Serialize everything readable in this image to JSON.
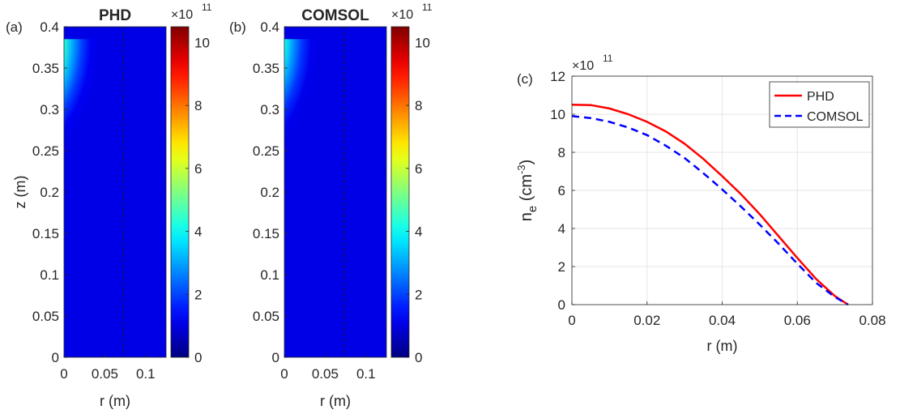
{
  "chart_data": [
    {
      "type": "heatmap",
      "panel_label": "(a)",
      "title": "PHD",
      "xlabel": "r (m)",
      "ylabel": "z (m)",
      "xlim": [
        0,
        0.125
      ],
      "ylim": [
        0,
        0.4
      ],
      "x_ticks": [
        "0",
        "0.05",
        "0.1"
      ],
      "y_ticks": [
        "0",
        "0.05",
        "0.1",
        "0.15",
        "0.2",
        "0.25",
        "0.3",
        "0.35",
        "0.4"
      ],
      "colorbar": {
        "min": 0,
        "max": 10.5,
        "ticks": [
          "0",
          "2",
          "4",
          "6",
          "8",
          "10"
        ],
        "exponent": "×10",
        "exponent_power": "11"
      },
      "peak": {
        "r": 0,
        "z": 0.3,
        "value": 10.5
      },
      "boundary_r": 0.073
    },
    {
      "type": "heatmap",
      "panel_label": "(b)",
      "title": "COMSOL",
      "xlabel": "r (m)",
      "ylabel": "",
      "xlim": [
        0,
        0.125
      ],
      "ylim": [
        0,
        0.4
      ],
      "x_ticks": [
        "0",
        "0.05",
        "0.1"
      ],
      "y_ticks": [
        "0",
        "0.05",
        "0.1",
        "0.15",
        "0.2",
        "0.25",
        "0.3",
        "0.35",
        "0.4"
      ],
      "colorbar": {
        "min": 0,
        "max": 10.5,
        "ticks": [
          "0",
          "2",
          "4",
          "6",
          "8",
          "10"
        ],
        "exponent": "×10",
        "exponent_power": "11"
      },
      "peak": {
        "r": 0,
        "z": 0.3,
        "value": 9.9
      },
      "boundary_r": 0.073
    },
    {
      "type": "line",
      "panel_label": "(c)",
      "xlabel": "r (m)",
      "ylabel": "n",
      "ylabel_sub": "e",
      "ylabel_unit": "(cm",
      "ylabel_unit_sup": "-3",
      "ylabel_unit_end": ")",
      "y_exponent": "×10",
      "y_exponent_power": "11",
      "xlim": [
        0,
        0.08
      ],
      "ylim": [
        0,
        12
      ],
      "x_ticks": [
        "0",
        "0.02",
        "0.04",
        "0.06",
        "0.08"
      ],
      "y_ticks": [
        "0",
        "2",
        "4",
        "6",
        "8",
        "10",
        "12"
      ],
      "grid": true,
      "legend_position": "top-right",
      "series": [
        {
          "name": "PHD",
          "color": "#ff0000",
          "dash": "solid",
          "x": [
            0,
            0.005,
            0.01,
            0.015,
            0.02,
            0.025,
            0.03,
            0.035,
            0.04,
            0.045,
            0.05,
            0.055,
            0.06,
            0.065,
            0.07,
            0.0735
          ],
          "y": [
            10.5,
            10.48,
            10.3,
            10.0,
            9.6,
            9.1,
            8.45,
            7.65,
            6.75,
            5.8,
            4.75,
            3.6,
            2.45,
            1.35,
            0.45,
            0.0
          ]
        },
        {
          "name": "COMSOL",
          "color": "#0000ff",
          "dash": "dashed",
          "x": [
            0,
            0.005,
            0.01,
            0.015,
            0.02,
            0.025,
            0.03,
            0.035,
            0.04,
            0.045,
            0.05,
            0.055,
            0.06,
            0.065,
            0.07,
            0.0735
          ],
          "y": [
            9.9,
            9.8,
            9.6,
            9.3,
            8.9,
            8.35,
            7.7,
            6.9,
            6.05,
            5.15,
            4.2,
            3.2,
            2.15,
            1.15,
            0.4,
            0.0
          ]
        }
      ]
    }
  ]
}
